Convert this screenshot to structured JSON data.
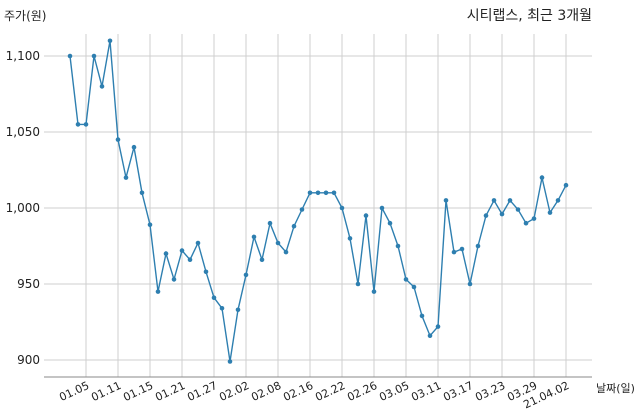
{
  "chart_data": {
    "type": "line",
    "title": "시티랩스, 최근 3개월",
    "ylabel": "주가(원)",
    "xlabel": "날짜(일)",
    "ylim": [
      880,
      1115
    ],
    "yticks": [
      900,
      950,
      1000,
      1050,
      1100
    ],
    "ytick_labels": [
      "900",
      "950",
      "1,000",
      "1,050",
      "1,100"
    ],
    "xtick_labels": [
      "01.05",
      "01.11",
      "01.15",
      "01.21",
      "01.27",
      "02.02",
      "02.08",
      "02.16",
      "02.22",
      "02.26",
      "03.05",
      "03.11",
      "03.17",
      "03.23",
      "03.29",
      "21.04.02"
    ],
    "xtick_index": [
      2,
      6,
      10,
      14,
      18,
      22,
      26,
      30,
      34,
      38,
      42,
      46,
      50,
      54,
      58,
      62
    ],
    "grid": true,
    "color": "#2e7fb0",
    "series": [
      {
        "values": [
          1100,
          1055,
          1055,
          1100,
          1080,
          1110,
          1045,
          1020,
          1040,
          1010,
          989,
          945,
          970,
          953,
          972,
          966,
          977,
          958,
          941,
          934,
          899,
          933,
          956,
          981,
          966,
          990,
          977,
          971,
          988,
          999,
          1010,
          1010,
          1010,
          1010,
          1000,
          980,
          950,
          995,
          945,
          1000,
          990,
          975,
          953,
          948,
          929,
          916,
          922,
          1005,
          971,
          973,
          950,
          975,
          995,
          1005,
          996,
          1005,
          999,
          990,
          993,
          1020,
          997,
          1005,
          1015
        ]
      }
    ]
  }
}
